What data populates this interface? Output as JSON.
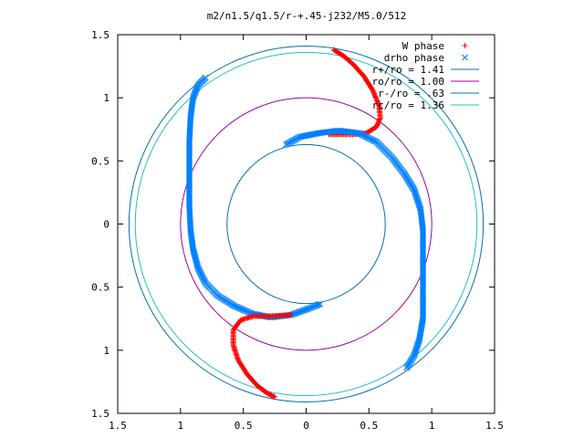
{
  "chart_data": {
    "type": "scatter",
    "title": "m2/n1.5/q1.5/r-+.45-j232/M5.0/512",
    "xlabel": "",
    "ylabel": "",
    "xlim": [
      -1.5,
      1.5
    ],
    "ylim": [
      -1.5,
      1.5
    ],
    "x_ticks": [
      -1.5,
      -1,
      -0.5,
      0,
      0.5,
      1,
      1.5
    ],
    "x_tick_labels": [
      "1.5",
      "1",
      "0.5",
      "0",
      "0.5",
      "1",
      "1.5"
    ],
    "y_ticks": [
      1.5,
      1,
      0.5,
      0,
      -0.5,
      -1,
      -1.5
    ],
    "y_tick_labels": [
      "1.5",
      "1",
      "0.5",
      "0",
      "0.5",
      "1",
      "1.5"
    ],
    "grid": false,
    "legend_position": "top-right",
    "circles": [
      {
        "name": "r+/ro = 1.41",
        "radius": 1.41,
        "color": "#0070b0"
      },
      {
        "name": "ro/ro = 1.00",
        "radius": 1.0,
        "color": "#a000a0"
      },
      {
        "name": "r-/ro = .63",
        "radius": 0.63,
        "color": "#0070b0"
      },
      {
        "name": "rc/ro = 1.36",
        "radius": 1.36,
        "color": "#20c0c0"
      }
    ],
    "series": [
      {
        "name": "W phase",
        "marker": "+",
        "color": "#ff0000",
        "points": [
          [
            0.22,
            1.38
          ],
          [
            0.3,
            1.33
          ],
          [
            0.38,
            1.26
          ],
          [
            0.46,
            1.17
          ],
          [
            0.53,
            1.06
          ],
          [
            0.58,
            0.94
          ],
          [
            0.59,
            0.84
          ],
          [
            0.56,
            0.77
          ],
          [
            0.48,
            0.72
          ],
          [
            0.38,
            0.71
          ],
          [
            0.28,
            0.71
          ],
          [
            0.18,
            0.71
          ]
        ]
      },
      {
        "name": "drho phase",
        "marker": "x",
        "color": "#0080ff",
        "points": [
          [
            -0.8,
            1.16
          ],
          [
            -0.86,
            1.1
          ],
          [
            -0.9,
            1.0
          ],
          [
            -0.92,
            0.85
          ],
          [
            -0.93,
            0.65
          ],
          [
            -0.93,
            0.4
          ],
          [
            -0.93,
            0.15
          ],
          [
            -0.92,
            -0.05
          ],
          [
            -0.9,
            -0.2
          ],
          [
            -0.86,
            -0.35
          ],
          [
            -0.8,
            -0.47
          ],
          [
            -0.7,
            -0.57
          ],
          [
            -0.57,
            -0.65
          ],
          [
            -0.43,
            -0.71
          ],
          [
            -0.28,
            -0.74
          ],
          [
            -0.12,
            -0.72
          ],
          [
            0.02,
            -0.67
          ],
          [
            0.12,
            -0.63
          ],
          [
            -0.16,
            0.63
          ],
          [
            -0.05,
            0.69
          ],
          [
            0.1,
            0.72
          ],
          [
            0.26,
            0.74
          ],
          [
            0.42,
            0.72
          ],
          [
            0.56,
            0.65
          ],
          [
            0.68,
            0.53
          ],
          [
            0.78,
            0.4
          ],
          [
            0.86,
            0.27
          ],
          [
            0.91,
            0.12
          ],
          [
            0.93,
            -0.05
          ],
          [
            0.93,
            -0.25
          ],
          [
            0.93,
            -0.5
          ],
          [
            0.93,
            -0.75
          ],
          [
            0.9,
            -0.92
          ],
          [
            0.86,
            -1.04
          ],
          [
            0.8,
            -1.14
          ]
        ]
      },
      {
        "name": "W phase",
        "marker": "+",
        "color": "#ff0000",
        "points": [
          [
            -0.12,
            -0.72
          ],
          [
            -0.28,
            -0.73
          ],
          [
            -0.42,
            -0.73
          ],
          [
            -0.52,
            -0.76
          ],
          [
            -0.58,
            -0.84
          ],
          [
            -0.58,
            -0.96
          ],
          [
            -0.54,
            -1.08
          ],
          [
            -0.47,
            -1.19
          ],
          [
            -0.39,
            -1.28
          ],
          [
            -0.31,
            -1.34
          ],
          [
            -0.25,
            -1.37
          ]
        ]
      }
    ],
    "legend": [
      {
        "label": "W phase",
        "kind": "marker",
        "marker": "+",
        "color": "#ff0000"
      },
      {
        "label": "drho phase",
        "kind": "marker",
        "marker": "x",
        "color": "#0080ff"
      },
      {
        "label": "r+/ro = 1.41",
        "kind": "line",
        "color": "#0070b0"
      },
      {
        "label": "ro/ro = 1.00",
        "kind": "line",
        "color": "#a000a0"
      },
      {
        "label": "r-/ro = .63",
        "kind": "line",
        "color": "#0070b0"
      },
      {
        "label": "rc/ro = 1.36",
        "kind": "line",
        "color": "#20c0c0"
      }
    ]
  }
}
